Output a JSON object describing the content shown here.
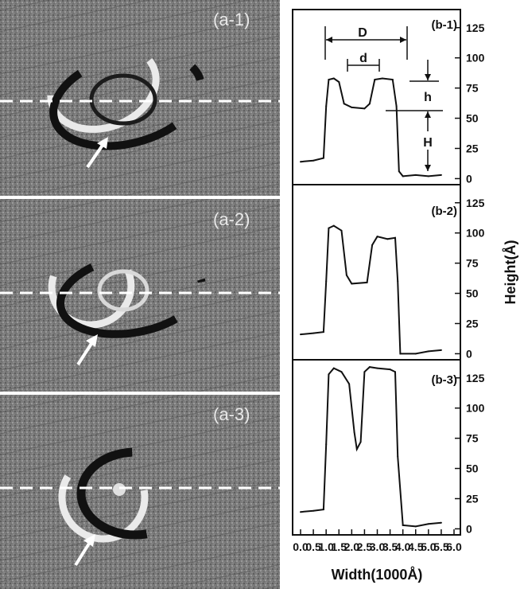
{
  "afm_panels": [
    {
      "label": "(a-1)"
    },
    {
      "label": "(a-2)"
    },
    {
      "label": "(a-3)"
    }
  ],
  "chart_data": {
    "type": "line",
    "xlabel": "Width(1000Å)",
    "ylabel": "Height(Å)",
    "xlim": [
      0,
      6
    ],
    "ylim": [
      -5,
      140
    ],
    "xticks": [
      "0.0",
      "0.5",
      "1.0",
      "1.5",
      "2.0",
      "2.5",
      "3.0",
      "3.5",
      "4.0",
      "4.5",
      "5.0",
      "5.5",
      "6.0"
    ],
    "yticks": [
      "0",
      "25",
      "50",
      "75",
      "100",
      "125"
    ],
    "panels": [
      {
        "label": "(b-1)",
        "x": [
          0.0,
          0.5,
          0.9,
          1.0,
          1.1,
          1.3,
          1.5,
          1.7,
          2.0,
          2.5,
          2.7,
          2.9,
          3.2,
          3.6,
          3.75,
          3.85,
          4.0,
          4.5,
          5.0,
          5.5
        ],
        "y": [
          14,
          15,
          17,
          60,
          82,
          83,
          80,
          62,
          59,
          58,
          62,
          82,
          83,
          82,
          60,
          6,
          2,
          3,
          2,
          3
        ],
        "annotations": [
          "D",
          "d",
          "h",
          "H"
        ]
      },
      {
        "label": "(b-2)",
        "x": [
          0.0,
          0.5,
          0.9,
          1.0,
          1.1,
          1.3,
          1.6,
          1.8,
          2.0,
          2.6,
          2.8,
          3.0,
          3.4,
          3.7,
          3.8,
          3.9,
          4.5,
          5.0,
          5.5
        ],
        "y": [
          16,
          17,
          18,
          60,
          104,
          106,
          102,
          65,
          58,
          59,
          90,
          97,
          95,
          96,
          60,
          0,
          0,
          2,
          3
        ]
      },
      {
        "label": "(b-3)",
        "x": [
          0.0,
          0.5,
          0.9,
          1.0,
          1.1,
          1.3,
          1.6,
          1.9,
          2.1,
          2.2,
          2.35,
          2.5,
          2.7,
          3.0,
          3.5,
          3.7,
          3.8,
          4.0,
          4.5,
          5.0,
          5.5
        ],
        "y": [
          14,
          15,
          16,
          70,
          128,
          133,
          130,
          120,
          80,
          66,
          72,
          130,
          134,
          133,
          132,
          130,
          60,
          3,
          2,
          4,
          5
        ]
      }
    ]
  }
}
